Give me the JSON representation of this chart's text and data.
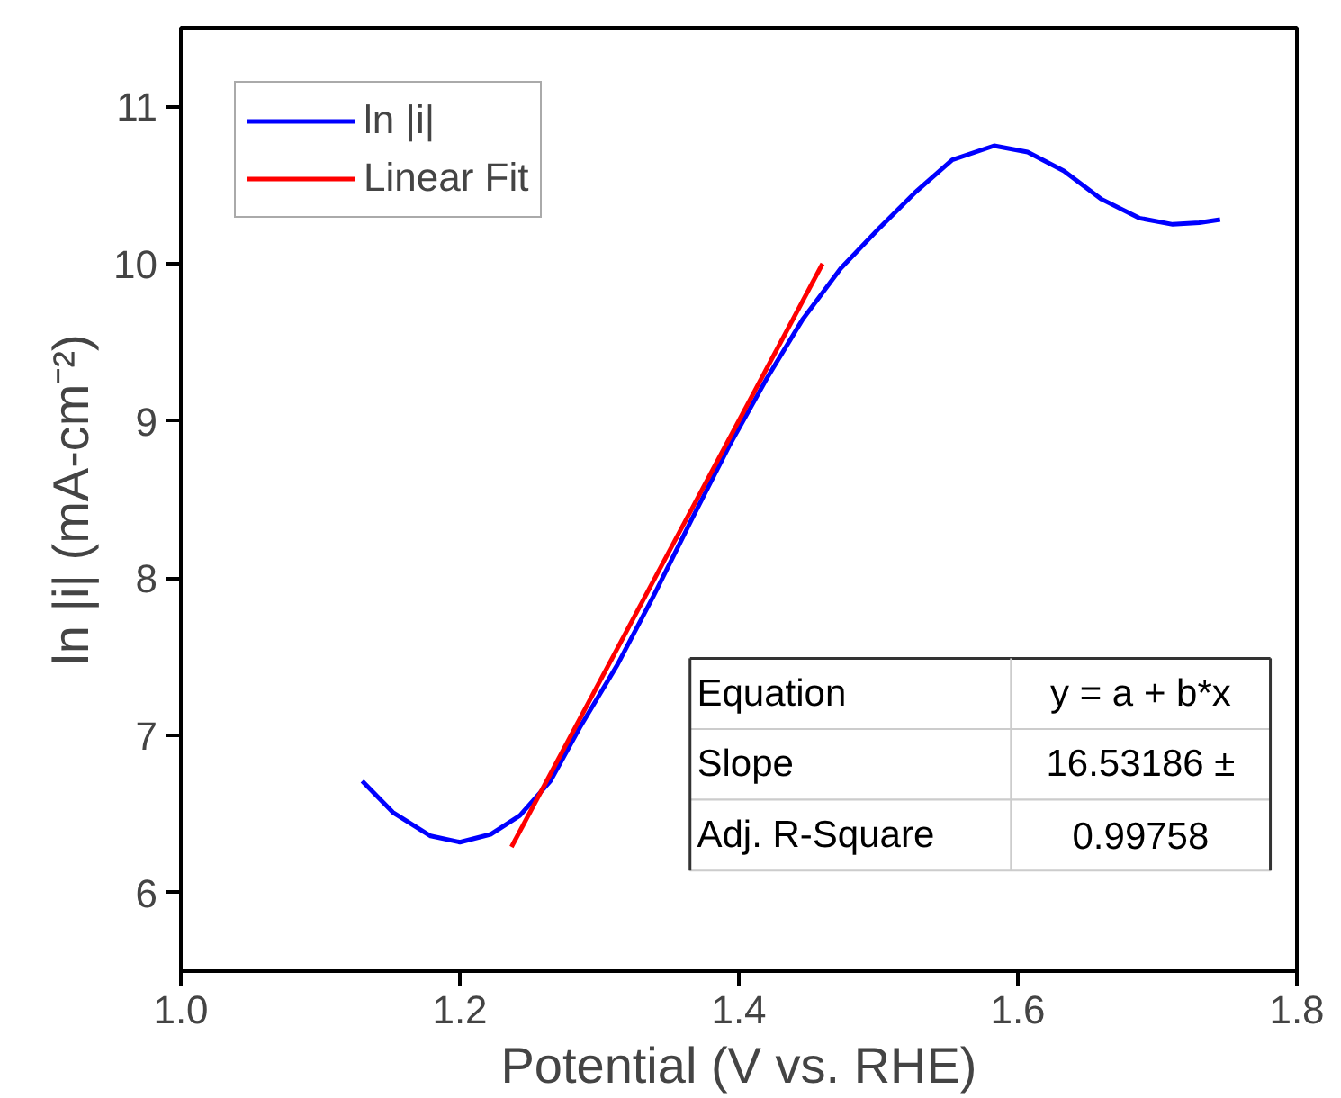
{
  "chart_data": {
    "type": "line",
    "xlabel": "Potential (V vs. RHE)",
    "ylabel": "ln |i| (mA-cm⁻²)",
    "xlim": [
      1.0,
      1.8
    ],
    "xticks": [
      {
        "value": 1.0,
        "label": "1.0"
      },
      1.2,
      1.4,
      1.6,
      1.8
    ],
    "ylim": [
      5.5,
      11.5
    ],
    "yticks": [
      6,
      7,
      8,
      9,
      10,
      11
    ],
    "grid": false,
    "legend": "top left",
    "line_style": "solid",
    "marker": "none",
    "series": [
      {
        "name": "ln |i|",
        "color": "#0000ff",
        "x": [
          1.13,
          1.152,
          1.179,
          1.2,
          1.222,
          1.243,
          1.265,
          1.286,
          1.313,
          1.339,
          1.366,
          1.393,
          1.42,
          1.446,
          1.473,
          1.5,
          1.526,
          1.553,
          1.583,
          1.607,
          1.633,
          1.66,
          1.687,
          1.711,
          1.73,
          1.745
        ],
        "values": [
          6.71,
          6.51,
          6.36,
          6.32,
          6.37,
          6.49,
          6.71,
          7.05,
          7.45,
          7.89,
          8.37,
          8.84,
          9.27,
          9.65,
          9.97,
          10.22,
          10.45,
          10.66,
          10.75,
          10.71,
          10.59,
          10.41,
          10.29,
          10.25,
          10.26,
          10.28
        ]
      },
      {
        "name": "Linear Fit",
        "color": "#ff0000",
        "type": "line",
        "x": [
          1.237,
          1.46
        ],
        "values": [
          6.29,
          10.0
        ]
      }
    ],
    "annotations": [
      "Equation",
      "y = a + b*x",
      "Slope",
      "16.53186 ±",
      "Adj. R-Square",
      "0.99758"
    ]
  }
}
